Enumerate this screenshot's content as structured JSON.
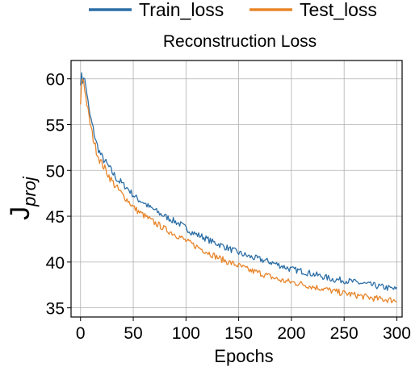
{
  "chart_data": {
    "type": "line",
    "title": "Reconstruction Loss",
    "xlabel": "Epochs",
    "ylabel": "J",
    "ylabel_subscript": "proj",
    "xlim": [
      -9,
      305
    ],
    "ylim": [
      34,
      62
    ],
    "xticks": [
      0,
      50,
      100,
      150,
      200,
      250,
      300
    ],
    "yticks": [
      35,
      40,
      45,
      50,
      55,
      60
    ],
    "grid": true,
    "legend": {
      "placement": "top-center",
      "entries": [
        "Train_loss",
        "Test_loss"
      ]
    },
    "series": [
      {
        "name": "Train_loss",
        "color": "#2b6ea6",
        "x": [
          0,
          1,
          2,
          3,
          4,
          6,
          8,
          10,
          12,
          15,
          18,
          20,
          23,
          26,
          30,
          35,
          40,
          45,
          50,
          55,
          60,
          65,
          70,
          75,
          80,
          85,
          90,
          95,
          100,
          105,
          110,
          115,
          120,
          125,
          130,
          140,
          150,
          160,
          170,
          180,
          190,
          200,
          210,
          220,
          230,
          240,
          250,
          260,
          270,
          280,
          290,
          300
        ],
        "values": [
          59.5,
          60.5,
          59.6,
          60.2,
          59.9,
          58.5,
          56.5,
          55.5,
          54.5,
          53.0,
          52.0,
          51.5,
          51.0,
          50.5,
          49.8,
          49.0,
          48.5,
          48.0,
          47.3,
          46.8,
          46.5,
          46.0,
          45.7,
          45.3,
          45.0,
          44.7,
          44.4,
          44.1,
          43.7,
          43.3,
          43.0,
          42.8,
          42.5,
          42.2,
          42.0,
          41.5,
          41.0,
          40.6,
          40.3,
          40.0,
          39.6,
          39.2,
          39.0,
          38.7,
          38.4,
          38.1,
          38.0,
          37.8,
          37.6,
          37.4,
          37.2,
          37.0
        ]
      },
      {
        "name": "Test_loss",
        "color": "#e8852a",
        "x": [
          0,
          1,
          2,
          3,
          4,
          6,
          8,
          10,
          12,
          15,
          18,
          20,
          23,
          26,
          30,
          35,
          40,
          45,
          50,
          55,
          60,
          65,
          70,
          75,
          80,
          85,
          90,
          95,
          100,
          105,
          110,
          115,
          120,
          125,
          130,
          140,
          150,
          160,
          170,
          180,
          190,
          200,
          210,
          220,
          230,
          240,
          250,
          260,
          270,
          280,
          290,
          300
        ],
        "values": [
          57.3,
          59.5,
          60.0,
          59.8,
          58.8,
          57.3,
          55.8,
          54.6,
          53.5,
          52.2,
          51.2,
          50.8,
          50.2,
          49.6,
          48.8,
          48.0,
          47.3,
          46.7,
          46.0,
          45.5,
          45.1,
          44.7,
          44.3,
          44.0,
          43.6,
          43.3,
          43.0,
          42.7,
          42.3,
          42.0,
          41.7,
          41.4,
          41.1,
          40.8,
          40.5,
          40.0,
          39.6,
          39.1,
          38.8,
          38.4,
          38.0,
          37.8,
          37.6,
          37.3,
          37.1,
          36.8,
          36.6,
          36.4,
          36.2,
          36.0,
          35.9,
          35.8
        ]
      }
    ]
  }
}
